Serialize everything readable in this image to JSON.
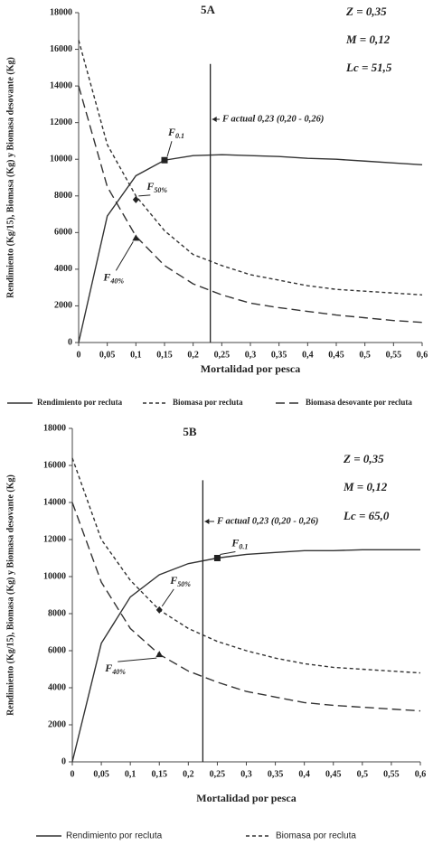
{
  "chart_data": [
    {
      "type": "line",
      "title": "5A",
      "params": [
        "Z = 0,35",
        "M = 0,12",
        "Lc = 51,5"
      ],
      "x_label": "Mortalidad por pesca",
      "y_label": "Rendimiento (Kg/15), Biomasa (Kg) y Biomasa desovante (Kg)",
      "x": [
        0,
        0.05,
        0.1,
        0.15,
        0.2,
        0.25,
        0.3,
        0.35,
        0.4,
        0.45,
        0.5,
        0.55,
        0.6
      ],
      "series": [
        {
          "name": "Rendimiento por recluta",
          "color": "#333333",
          "style": "solid",
          "values": [
            0,
            6900,
            9100,
            9950,
            10200,
            10250,
            10200,
            10150,
            10050,
            10000,
            9900,
            9800,
            9700
          ]
        },
        {
          "name": "Biomasa por recluta",
          "color": "#333333",
          "style": "dashed",
          "values": [
            16500,
            10800,
            8000,
            6100,
            4800,
            4200,
            3700,
            3400,
            3100,
            2900,
            2800,
            2700,
            2600
          ]
        },
        {
          "name": "Biomasa desovante por recluta",
          "color": "#333333",
          "style": "long-dashed",
          "values": [
            14000,
            8500,
            5800,
            4200,
            3200,
            2600,
            2150,
            1900,
            1700,
            1500,
            1350,
            1200,
            1100
          ]
        }
      ],
      "markers": [
        {
          "label": "F",
          "sub": "0.1",
          "shape": "square",
          "x": 0.15,
          "y": 9950
        },
        {
          "label": "F",
          "sub": "50%",
          "shape": "diamond",
          "x": 0.1,
          "y": 7800
        },
        {
          "label": "F",
          "sub": "40%",
          "shape": "triangle",
          "x": 0.1,
          "y": 5700
        }
      ],
      "vline": 0.23,
      "vline_label": "F actual 0,23 (0,20 - 0,26)",
      "xlim": [
        0,
        0.6
      ],
      "xticks": [
        0,
        {
          "value": 0.05,
          "label": "0,05"
        },
        {
          "value": 0.1,
          "label": "0,1"
        },
        {
          "value": 0.15,
          "label": "0,15"
        },
        {
          "value": 0.2,
          "label": "0,2"
        },
        {
          "value": 0.25,
          "label": "0,25"
        },
        {
          "value": 0.3,
          "label": "0,3"
        },
        {
          "value": 0.35,
          "label": "0,35"
        },
        {
          "value": 0.4,
          "label": "0,4"
        },
        {
          "value": 0.45,
          "label": "0,45"
        },
        {
          "value": 0.5,
          "label": "0,5"
        },
        {
          "value": 0.55,
          "label": "0,55"
        },
        {
          "value": 0.6,
          "label": "0,6"
        }
      ],
      "ylim": [
        0,
        18000
      ],
      "yticks": [
        0,
        2000,
        4000,
        6000,
        8000,
        10000,
        12000,
        14000,
        16000,
        18000
      ]
    },
    {
      "type": "line",
      "title": "5B",
      "params": [
        "Z = 0,35",
        "M = 0,12",
        "Lc = 65,0"
      ],
      "x_label": "Mortalidad por pesca",
      "y_label": "Rendimiento (Kg/15), Biomasa (Kg) y Biomasa desovante (Kg)",
      "x": [
        0,
        0.05,
        0.1,
        0.15,
        0.2,
        0.25,
        0.3,
        0.35,
        0.4,
        0.45,
        0.5,
        0.55,
        0.6
      ],
      "series": [
        {
          "name": "Rendimiento por recluta",
          "color": "#333333",
          "style": "solid",
          "values": [
            0,
            6400,
            8900,
            10100,
            10700,
            11000,
            11200,
            11300,
            11400,
            11400,
            11450,
            11450,
            11450
          ]
        },
        {
          "name": "Biomasa por recluta",
          "color": "#333333",
          "style": "dashed",
          "values": [
            16400,
            12000,
            9800,
            8200,
            7200,
            6500,
            6000,
            5600,
            5300,
            5100,
            5000,
            4900,
            4800
          ]
        },
        {
          "color": "#333333",
          "style": "long-dashed",
          "values": [
            14000,
            9700,
            7200,
            5800,
            4900,
            4300,
            3800,
            3500,
            3200,
            3050,
            2950,
            2850,
            2750
          ]
        }
      ],
      "markers": [
        {
          "label": "F",
          "sub": "0.1",
          "shape": "square",
          "x": 0.25,
          "y": 11000
        },
        {
          "label": "F",
          "sub": "50%",
          "shape": "diamond",
          "x": 0.15,
          "y": 8200
        },
        {
          "label": "F",
          "sub": "40%",
          "shape": "triangle",
          "x": 0.15,
          "y": 5800
        }
      ],
      "vline": 0.225,
      "vline_label": "F actual 0,23 (0,20 - 0,26)",
      "xlim": [
        0,
        0.6
      ],
      "xticks": [
        0,
        {
          "value": 0.05,
          "label": "0,05"
        },
        {
          "value": 0.1,
          "label": "0,1"
        },
        {
          "value": 0.15,
          "label": "0,15"
        },
        {
          "value": 0.2,
          "label": "0,2"
        },
        {
          "value": 0.25,
          "label": "0,25"
        },
        {
          "value": 0.3,
          "label": "0,3"
        },
        {
          "value": 0.35,
          "label": "0,35"
        },
        {
          "value": 0.4,
          "label": "0,4"
        },
        {
          "value": 0.45,
          "label": "0,45"
        },
        {
          "value": 0.5,
          "label": "0,5"
        },
        {
          "value": 0.55,
          "label": "0,55"
        },
        {
          "value": 0.6,
          "label": "0,6"
        }
      ],
      "ylim": [
        0,
        18000
      ],
      "yticks": [
        0,
        2000,
        4000,
        6000,
        8000,
        10000,
        12000,
        14000,
        16000,
        18000
      ]
    }
  ]
}
